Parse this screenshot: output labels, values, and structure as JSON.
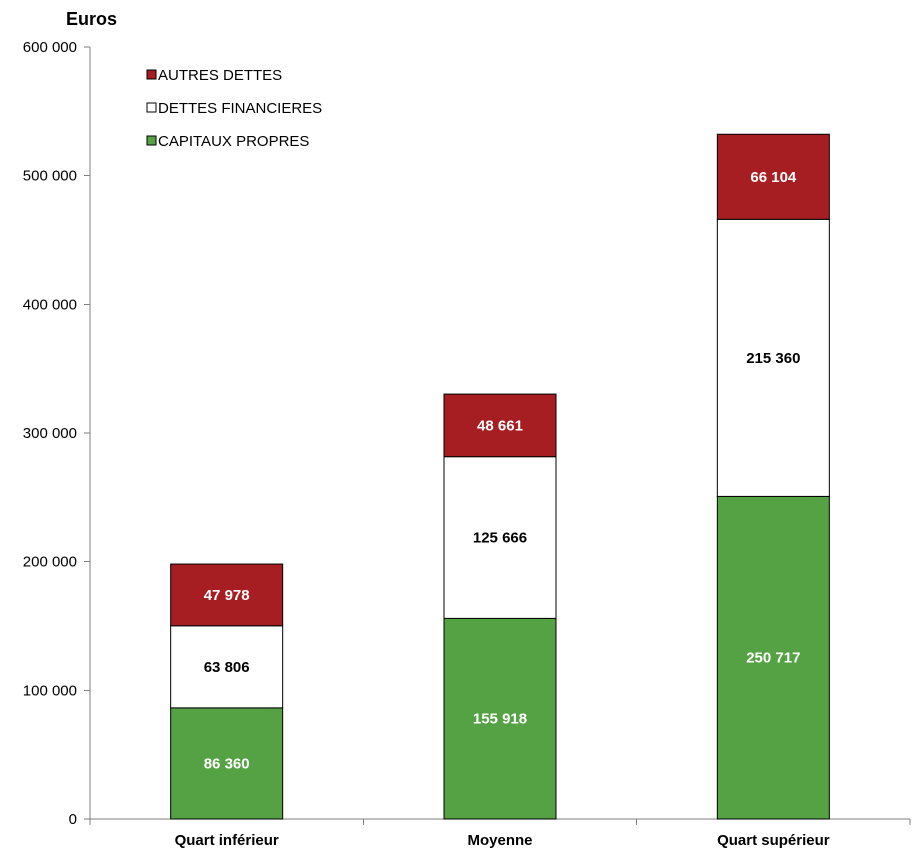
{
  "chart_data": {
    "type": "bar",
    "stacked": true,
    "unit_label": "Euros",
    "categories": [
      "Quart inférieur",
      "Moyenne",
      "Quart supérieur"
    ],
    "series": [
      {
        "name": "CAPITAUX PROPRES",
        "color": "#55A244",
        "label_color": "#ffffff",
        "values": [
          86360,
          155918,
          250717
        ],
        "labels": [
          "86 360",
          "155 918",
          "250 717"
        ]
      },
      {
        "name": "DETTES FINANCIERES",
        "color": "#ffffff",
        "label_color": "#000000",
        "values": [
          63806,
          125666,
          215360
        ],
        "labels": [
          "63 806",
          "125 666",
          "215 360"
        ]
      },
      {
        "name": "AUTRES DETTES",
        "color": "#A71E22",
        "label_color": "#ffffff",
        "values": [
          47978,
          48661,
          66104
        ],
        "labels": [
          "47 978",
          "48 661",
          "66 104"
        ]
      }
    ],
    "legend_order": [
      "AUTRES DETTES",
      "DETTES FINANCIERES",
      "CAPITAUX PROPRES"
    ],
    "legend_position": "top-left",
    "ylim": [
      0,
      600000
    ],
    "y_ticks": [
      0,
      100000,
      200000,
      300000,
      400000,
      500000,
      600000
    ],
    "y_tick_labels": [
      "0",
      "100 000",
      "200 000",
      "300 000",
      "400 000",
      "500 000",
      "600 000"
    ],
    "grid": false
  }
}
